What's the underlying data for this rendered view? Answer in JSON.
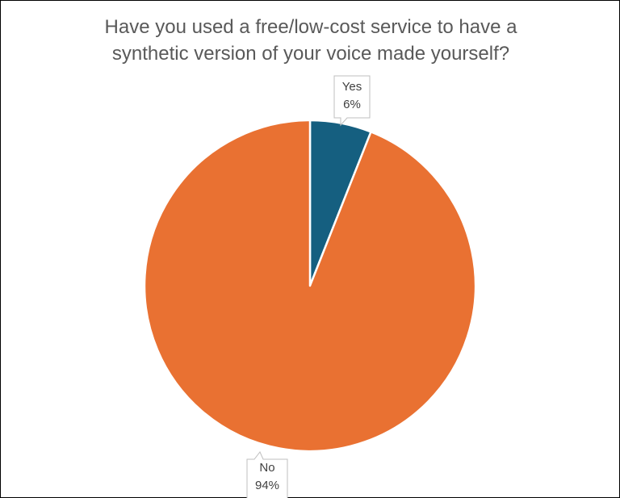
{
  "chart_data": {
    "type": "pie",
    "title_lines": [
      "Have you used a free/low-cost service to have a",
      "synthetic version of your voice made yourself?"
    ],
    "slices": [
      {
        "label": "Yes",
        "value": 6,
        "value_label": "6%",
        "color": "#155f80"
      },
      {
        "label": "No",
        "value": 94,
        "value_label": "94%",
        "color": "#e97132"
      }
    ],
    "start_angle_deg": 0,
    "direction": "clockwise",
    "legend": "none"
  }
}
